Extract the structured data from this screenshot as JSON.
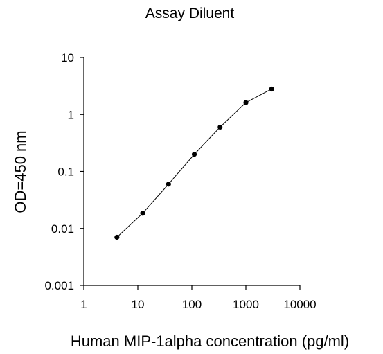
{
  "chart_data": {
    "type": "line",
    "title": "Assay Diluent",
    "xlabel": "Human MIP-1alpha concentration (pg/ml)",
    "ylabel": "OD=450 nm",
    "x_scale": "log",
    "y_scale": "log",
    "xlim": [
      1,
      10000
    ],
    "ylim": [
      0.001,
      10
    ],
    "x_ticks": [
      1,
      10,
      100,
      1000,
      10000
    ],
    "x_tick_labels": [
      "1",
      "10",
      "100",
      "1000",
      "10000"
    ],
    "y_ticks": [
      0.001,
      0.01,
      0.1,
      1,
      10
    ],
    "y_tick_labels": [
      "0.001",
      "0.01",
      "0.1",
      "1",
      "10"
    ],
    "grid": false,
    "legend": "none",
    "series": [
      {
        "x": [
          4.1,
          12.3,
          37,
          111,
          333,
          1000,
          3000
        ],
        "y": [
          0.007,
          0.0185,
          0.06,
          0.2,
          0.6,
          1.62,
          2.8
        ],
        "color": "#000000",
        "marker": "circle"
      }
    ]
  }
}
